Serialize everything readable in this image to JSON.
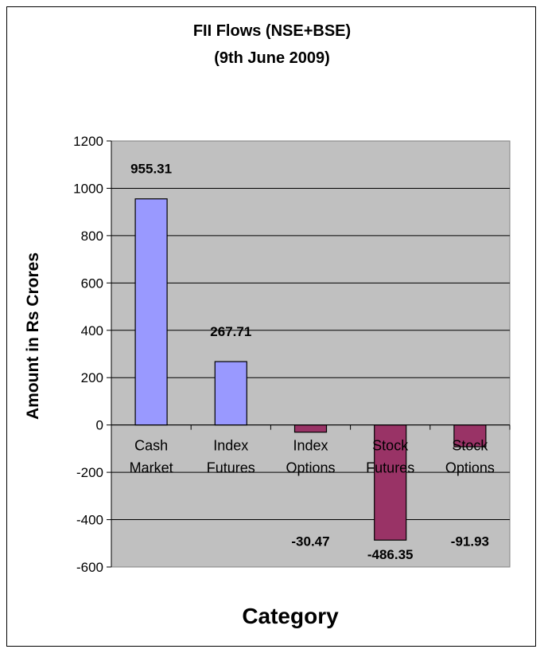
{
  "chart_data": {
    "type": "bar",
    "title": "FII Flows (NSE+BSE)",
    "subtitle": "(9th June 2009)",
    "xlabel": "Category",
    "ylabel": "Amount in Rs Crores",
    "categories": [
      [
        "Cash",
        "Market"
      ],
      [
        "Index",
        "Futures"
      ],
      [
        "Index",
        "Options"
      ],
      [
        "Stock",
        "Futures"
      ],
      [
        "Stock",
        "Options"
      ]
    ],
    "values": [
      955.31,
      267.71,
      -30.47,
      -486.35,
      -91.93
    ],
    "data_labels": [
      "955.31",
      "267.71",
      "-30.47",
      "-486.35",
      "-91.93"
    ],
    "ylim": [
      -600,
      1200
    ],
    "yticks": [
      1200,
      1000,
      800,
      600,
      400,
      200,
      0,
      -200,
      -400,
      -600
    ],
    "grid": true,
    "legend": "none",
    "colors": {
      "positive": "#9999FF",
      "negative": "#993366",
      "plot_background": "#C0C0C0",
      "gridline": "#000000"
    }
  }
}
